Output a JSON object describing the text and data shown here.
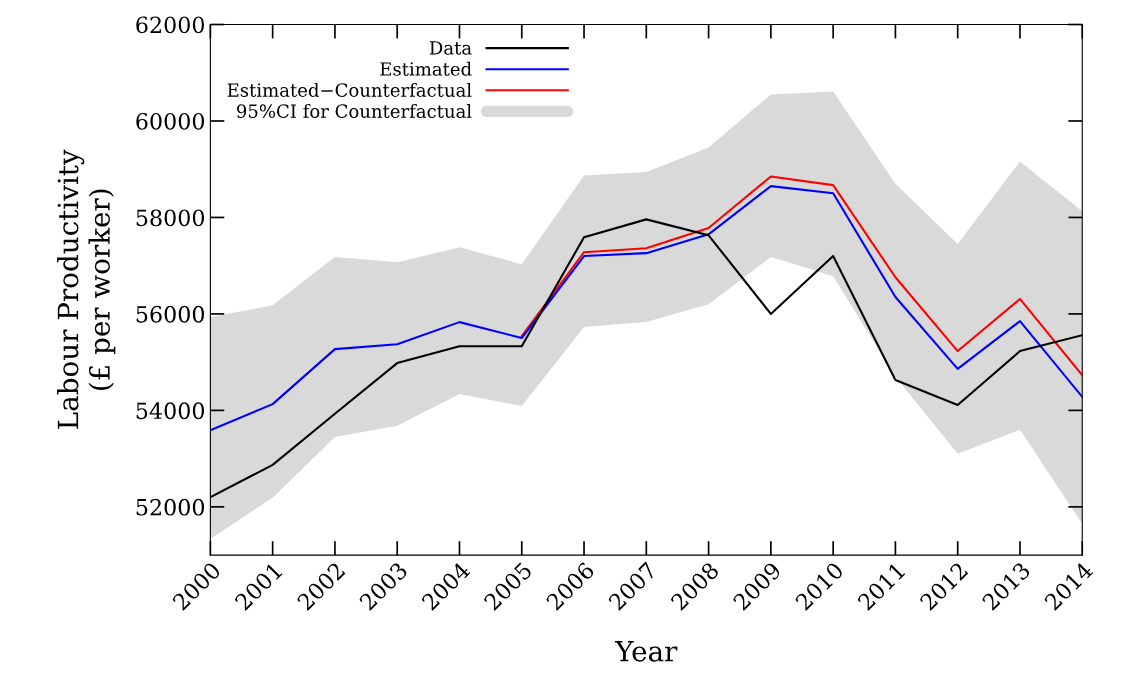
{
  "chart_data": {
    "type": "line",
    "xlabel": "Year",
    "ylabel": "Labour Productivity\n(£ per worker)",
    "x": [
      2000,
      2001,
      2002,
      2003,
      2004,
      2005,
      2006,
      2007,
      2008,
      2009,
      2010,
      2011,
      2012,
      2013,
      2014
    ],
    "xlim": [
      2000,
      2014
    ],
    "xticks": [
      2000,
      2001,
      2002,
      2003,
      2004,
      2005,
      2006,
      2007,
      2008,
      2009,
      2010,
      2011,
      2012,
      2013,
      2014
    ],
    "ylim": [
      51000,
      62000
    ],
    "yticks": [
      52000,
      54000,
      56000,
      58000,
      60000,
      62000
    ],
    "grid": false,
    "legend": "top left",
    "marker": "none",
    "line_style": "solid",
    "series": [
      {
        "name": "Data",
        "color": "#000000",
        "values": [
          52200,
          52870,
          53930,
          54980,
          55330,
          55330,
          57590,
          57960,
          57630,
          56000,
          57200,
          54630,
          54110,
          55230,
          55560
        ]
      },
      {
        "name": "Estimated",
        "color": "#0000ff",
        "values": [
          53590,
          54130,
          55270,
          55370,
          55830,
          55500,
          57200,
          57260,
          57650,
          58650,
          58500,
          56350,
          54860,
          55850,
          54280
        ]
      },
      {
        "name": "Estimated−Counterfactual",
        "color": "#ff0000",
        "values": [
          null,
          null,
          null,
          null,
          null,
          55540,
          57280,
          57360,
          57780,
          58850,
          58670,
          56760,
          55230,
          56310,
          54730
        ]
      },
      {
        "name": "95%CI for Counterfactual",
        "type": "area",
        "color": "#d9d9d9",
        "values": [
          null,
          null,
          null,
          null,
          null,
          null,
          null,
          null,
          null,
          null,
          null,
          null,
          null,
          null,
          null
        ],
        "lower": [
          51340,
          52190,
          53450,
          53680,
          54340,
          54090,
          55730,
          55830,
          56200,
          57180,
          56780,
          54700,
          53100,
          53600,
          51650
        ],
        "upper": [
          55930,
          56180,
          57180,
          57070,
          57380,
          57030,
          58870,
          58940,
          59450,
          60550,
          60610,
          58700,
          57450,
          59160,
          58130
        ]
      }
    ]
  }
}
